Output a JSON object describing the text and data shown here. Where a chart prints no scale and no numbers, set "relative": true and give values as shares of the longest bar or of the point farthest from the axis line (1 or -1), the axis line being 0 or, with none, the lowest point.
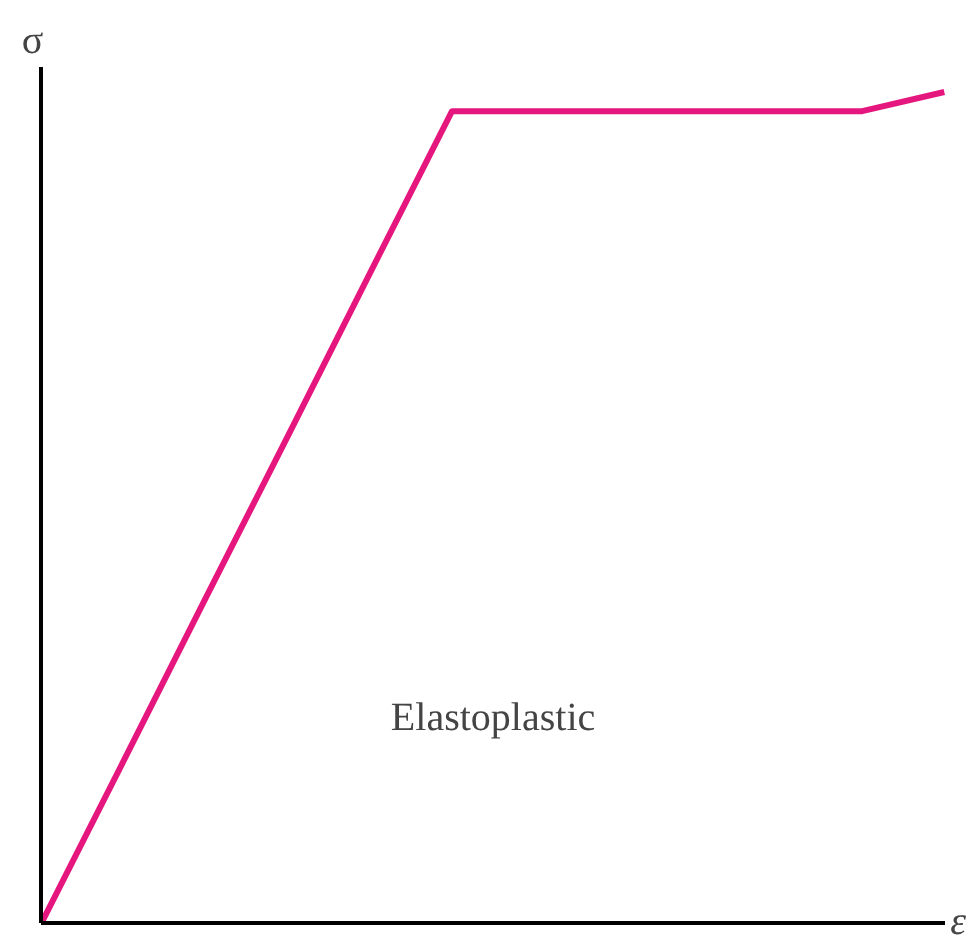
{
  "chart_data": {
    "type": "line",
    "relative": true,
    "ylabel": "σ",
    "xlabel": "ε",
    "annotations": [
      "Elastoplastic"
    ],
    "categories": [
      null,
      null,
      null,
      null,
      null,
      null,
      null,
      null,
      null,
      null,
      null,
      null
    ],
    "series": [
      {
        "color": "#e5177e",
        "values": [
          0,
          0.195,
          0.391,
          0.586,
          0.782,
          0.977,
          0.977,
          0.977,
          0.977,
          0.977,
          0.977,
          1.0
        ]
      }
    ],
    "marker": "none",
    "line_style": "solid"
  }
}
